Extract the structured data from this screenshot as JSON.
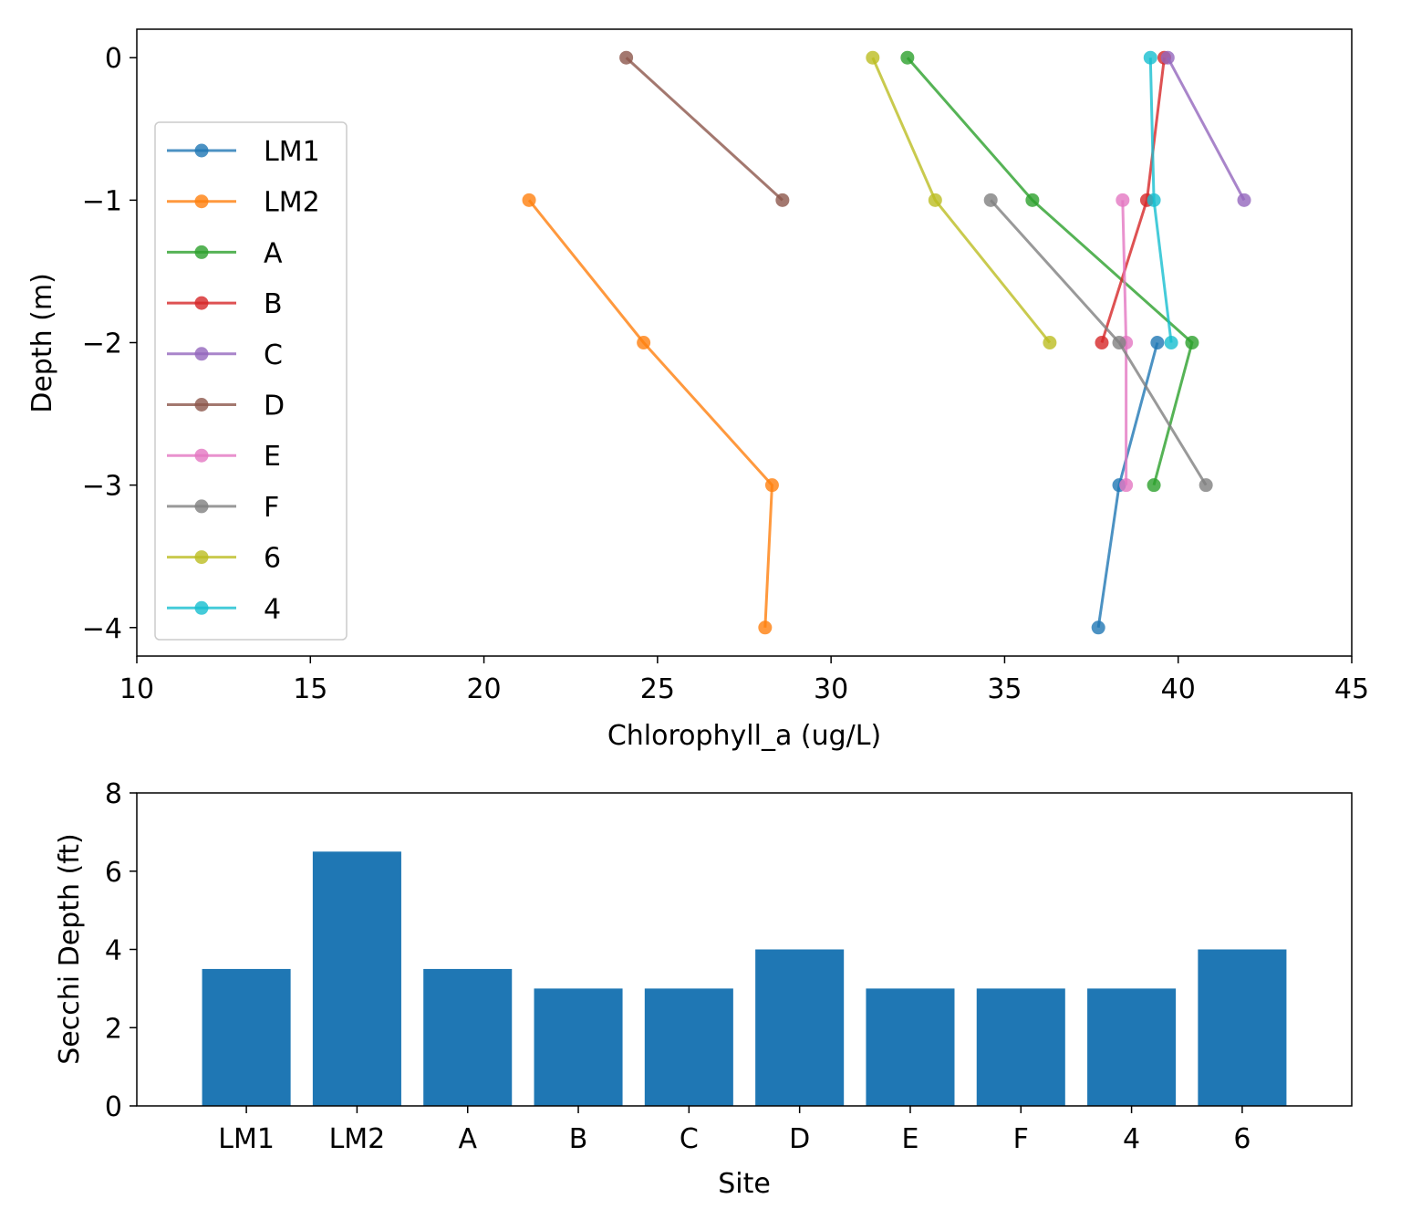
{
  "chart_data": [
    {
      "type": "line",
      "xlabel": "Chlorophyll_a  (ug/L)",
      "ylabel": "Depth (m)",
      "xlim": [
        10,
        45
      ],
      "ylim": [
        -4.2,
        0.2
      ],
      "xticks": [
        "10",
        "15",
        "20",
        "25",
        "30",
        "35",
        "40",
        "45"
      ],
      "yticks": [
        "0",
        "−1",
        "−2",
        "−3",
        "−4"
      ],
      "legend_placement": "center-left",
      "series": [
        {
          "name": "LM1",
          "color": "#1f77b4",
          "points": [
            [
              39.4,
              -2
            ],
            [
              38.3,
              -3
            ],
            [
              37.7,
              -4
            ]
          ]
        },
        {
          "name": "LM2",
          "color": "#ff7f0e",
          "points": [
            [
              21.3,
              -1
            ],
            [
              24.6,
              -2
            ],
            [
              28.3,
              -3
            ],
            [
              28.1,
              -4
            ]
          ]
        },
        {
          "name": "A",
          "color": "#2ca02c",
          "points": [
            [
              32.2,
              0
            ],
            [
              35.8,
              -1
            ],
            [
              40.4,
              -2
            ],
            [
              39.3,
              -3
            ]
          ]
        },
        {
          "name": "B",
          "color": "#d62728",
          "points": [
            [
              39.6,
              0
            ],
            [
              39.1,
              -1
            ],
            [
              37.8,
              -2
            ]
          ]
        },
        {
          "name": "C",
          "color": "#9467bd",
          "points": [
            [
              39.7,
              0
            ],
            [
              41.9,
              -1
            ]
          ]
        },
        {
          "name": "D",
          "color": "#8c564b",
          "points": [
            [
              24.1,
              0
            ],
            [
              28.6,
              -1
            ]
          ]
        },
        {
          "name": "E",
          "color": "#e377c2",
          "points": [
            [
              38.4,
              -1
            ],
            [
              38.5,
              -2
            ],
            [
              38.5,
              -3
            ]
          ]
        },
        {
          "name": "F",
          "color": "#7f7f7f",
          "points": [
            [
              34.6,
              -1
            ],
            [
              38.3,
              -2
            ],
            [
              40.8,
              -3
            ]
          ]
        },
        {
          "name": "6",
          "color": "#bcbd22",
          "points": [
            [
              31.2,
              0
            ],
            [
              33.0,
              -1
            ],
            [
              36.3,
              -2
            ]
          ]
        },
        {
          "name": "4",
          "color": "#17becf",
          "points": [
            [
              39.2,
              0
            ],
            [
              39.3,
              -1
            ],
            [
              39.8,
              -2
            ]
          ]
        }
      ]
    },
    {
      "type": "bar",
      "xlabel": "Site",
      "ylabel": "Secchi Depth (ft)",
      "ylim": [
        0,
        8
      ],
      "yticks": [
        "0",
        "2",
        "4",
        "6",
        "8"
      ],
      "color": "#1f77b4",
      "categories": [
        "LM1",
        "LM2",
        "A",
        "B",
        "C",
        "D",
        "E",
        "F",
        "4",
        "6"
      ],
      "values": [
        3.5,
        6.5,
        3.5,
        3,
        3,
        4,
        3,
        3,
        3,
        4
      ]
    }
  ]
}
